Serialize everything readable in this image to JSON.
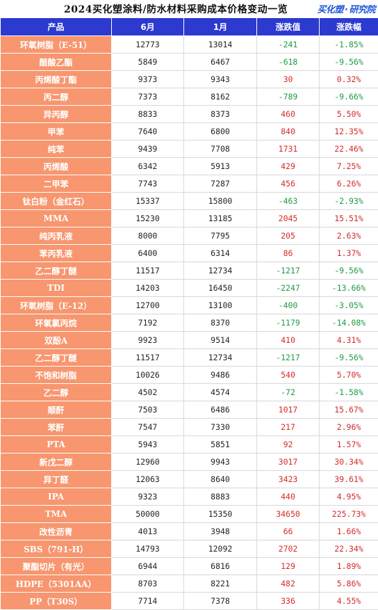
{
  "title": "2024买化塑涂料/防水材料采购成本价格变动一览",
  "brand": {
    "main": "买化塑",
    "sub": "研究院"
  },
  "colors": {
    "header_bg": "#2c3ad0",
    "product_bg": "#f7966f",
    "up": "#d42a2a",
    "down": "#1d9a46"
  },
  "table": {
    "headers": [
      "产品",
      "6月",
      "1月",
      "涨跌值",
      "涨跌幅"
    ],
    "rows": [
      {
        "product": "环氧树脂（E-51）",
        "jun": "12773",
        "jan": "13014",
        "change": "-241",
        "pct": "-1.85%",
        "dir": "down"
      },
      {
        "product": "醋酸乙酯",
        "jun": "5849",
        "jan": "6467",
        "change": "-618",
        "pct": "-9.56%",
        "dir": "down"
      },
      {
        "product": "丙烯酸丁酯",
        "jun": "9373",
        "jan": "9343",
        "change": "30",
        "pct": "0.32%",
        "dir": "up"
      },
      {
        "product": "丙二醇",
        "jun": "7373",
        "jan": "8162",
        "change": "-789",
        "pct": "-9.66%",
        "dir": "down"
      },
      {
        "product": "异丙醇",
        "jun": "8833",
        "jan": "8373",
        "change": "460",
        "pct": "5.50%",
        "dir": "up"
      },
      {
        "product": "甲苯",
        "jun": "7640",
        "jan": "6800",
        "change": "840",
        "pct": "12.35%",
        "dir": "up"
      },
      {
        "product": "纯苯",
        "jun": "9439",
        "jan": "7708",
        "change": "1731",
        "pct": "22.46%",
        "dir": "up"
      },
      {
        "product": "丙烯酸",
        "jun": "6342",
        "jan": "5913",
        "change": "429",
        "pct": "7.25%",
        "dir": "up"
      },
      {
        "product": "二甲苯",
        "jun": "7743",
        "jan": "7287",
        "change": "456",
        "pct": "6.26%",
        "dir": "up"
      },
      {
        "product": "钛白粉（金红石）",
        "jun": "15337",
        "jan": "15800",
        "change": "-463",
        "pct": "-2.93%",
        "dir": "down"
      },
      {
        "product": "MMA",
        "jun": "15230",
        "jan": "13185",
        "change": "2045",
        "pct": "15.51%",
        "dir": "up"
      },
      {
        "product": "纯丙乳液",
        "jun": "8000",
        "jan": "7795",
        "change": "205",
        "pct": "2.63%",
        "dir": "up"
      },
      {
        "product": "苯丙乳液",
        "jun": "6400",
        "jan": "6314",
        "change": "86",
        "pct": "1.37%",
        "dir": "up"
      },
      {
        "product": "乙二醇丁醚",
        "jun": "11517",
        "jan": "12734",
        "change": "-1217",
        "pct": "-9.56%",
        "dir": "down"
      },
      {
        "product": "TDI",
        "jun": "14203",
        "jan": "16450",
        "change": "-2247",
        "pct": "-13.66%",
        "dir": "down"
      },
      {
        "product": "环氧树脂（E-12）",
        "jun": "12700",
        "jan": "13100",
        "change": "-400",
        "pct": "-3.05%",
        "dir": "down"
      },
      {
        "product": "环氧氯丙烷",
        "jun": "7192",
        "jan": "8370",
        "change": "-1179",
        "pct": "-14.08%",
        "dir": "down"
      },
      {
        "product": "双酚A",
        "jun": "9923",
        "jan": "9514",
        "change": "410",
        "pct": "4.31%",
        "dir": "up"
      },
      {
        "product": "乙二醇丁醚",
        "jun": "11517",
        "jan": "12734",
        "change": "-1217",
        "pct": "-9.56%",
        "dir": "down"
      },
      {
        "product": "不饱和树脂",
        "jun": "10026",
        "jan": "9486",
        "change": "540",
        "pct": "5.70%",
        "dir": "up"
      },
      {
        "product": "乙二醇",
        "jun": "4502",
        "jan": "4574",
        "change": "-72",
        "pct": "-1.58%",
        "dir": "down"
      },
      {
        "product": "顺酐",
        "jun": "7503",
        "jan": "6486",
        "change": "1017",
        "pct": "15.67%",
        "dir": "up"
      },
      {
        "product": "苯酐",
        "jun": "7547",
        "jan": "7330",
        "change": "217",
        "pct": "2.96%",
        "dir": "up"
      },
      {
        "product": "PTA",
        "jun": "5943",
        "jan": "5851",
        "change": "92",
        "pct": "1.57%",
        "dir": "up"
      },
      {
        "product": "新戊二醇",
        "jun": "12960",
        "jan": "9943",
        "change": "3017",
        "pct": "30.34%",
        "dir": "up"
      },
      {
        "product": "异丁醛",
        "jun": "12063",
        "jan": "8640",
        "change": "3423",
        "pct": "39.61%",
        "dir": "up"
      },
      {
        "product": "IPA",
        "jun": "9323",
        "jan": "8883",
        "change": "440",
        "pct": "4.95%",
        "dir": "up"
      },
      {
        "product": "TMA",
        "jun": "50000",
        "jan": "15350",
        "change": "34650",
        "pct": "225.73%",
        "dir": "up"
      },
      {
        "product": "改性沥青",
        "jun": "4013",
        "jan": "3948",
        "change": "66",
        "pct": "1.66%",
        "dir": "up"
      },
      {
        "product": "SBS（791-H）",
        "jun": "14793",
        "jan": "12092",
        "change": "2702",
        "pct": "22.34%",
        "dir": "up"
      },
      {
        "product": "聚酯切片（有光）",
        "jun": "6944",
        "jan": "6816",
        "change": "129",
        "pct": "1.89%",
        "dir": "up"
      },
      {
        "product": "HDPE（5301AA）",
        "jun": "8703",
        "jan": "8221",
        "change": "482",
        "pct": "5.86%",
        "dir": "up"
      },
      {
        "product": "PP（T30S）",
        "jun": "7714",
        "jan": "7378",
        "change": "336",
        "pct": "4.55%",
        "dir": "up"
      }
    ]
  }
}
